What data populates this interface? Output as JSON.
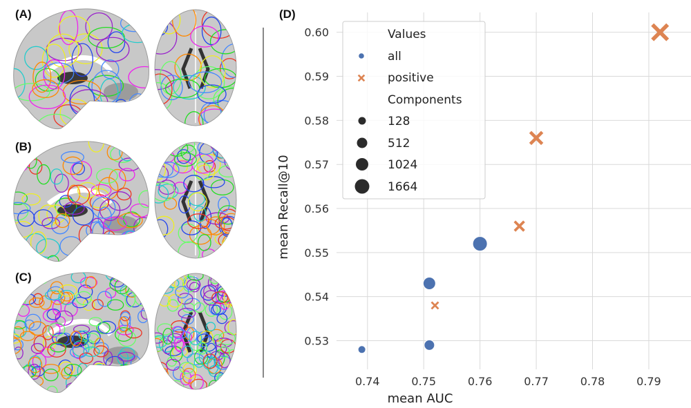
{
  "panels": {
    "a": "(A)",
    "b": "(B)",
    "c": "(C)",
    "d": "(D)"
  },
  "atlas_colors": [
    "#2244ee",
    "#9922cc",
    "#ee22ee",
    "#22dd22",
    "#22cccc",
    "#eeee22",
    "#ee3322",
    "#ff8800",
    "#66ff66",
    "#4488ff"
  ],
  "chart_data": {
    "type": "scatter",
    "title": "",
    "xlabel": "mean AUC",
    "ylabel": "mean Recall@10",
    "xlim": [
      0.7345,
      0.7975
    ],
    "ylim": [
      0.5235,
      0.6045
    ],
    "xticks": [
      0.74,
      0.75,
      0.76,
      0.77,
      0.78,
      0.79
    ],
    "yticks": [
      0.53,
      0.54,
      0.55,
      0.56,
      0.57,
      0.58,
      0.59,
      0.6
    ],
    "xtick_labels": [
      "0.74",
      "0.75",
      "0.76",
      "0.77",
      "0.78",
      "0.79"
    ],
    "ytick_labels": [
      "0.53",
      "0.54",
      "0.55",
      "0.56",
      "0.57",
      "0.58",
      "0.59",
      "0.60"
    ],
    "grid": true,
    "series": [
      {
        "name": "all",
        "marker": "circle",
        "color": "#4c72b0",
        "points": [
          {
            "x": 0.739,
            "y": 0.528,
            "components": 128
          },
          {
            "x": 0.751,
            "y": 0.529,
            "components": 512
          },
          {
            "x": 0.751,
            "y": 0.543,
            "components": 1024
          },
          {
            "x": 0.76,
            "y": 0.552,
            "components": 1664
          }
        ]
      },
      {
        "name": "positive",
        "marker": "x",
        "color": "#dd8452",
        "points": [
          {
            "x": 0.752,
            "y": 0.538,
            "components": 128
          },
          {
            "x": 0.767,
            "y": 0.556,
            "components": 512
          },
          {
            "x": 0.77,
            "y": 0.576,
            "components": 1024
          },
          {
            "x": 0.792,
            "y": 0.6,
            "components": 1664
          }
        ]
      }
    ],
    "legend": {
      "placement": "top-left",
      "hue_title": "Values",
      "size_title": "Components",
      "size_entries": [
        128,
        512,
        1024,
        1664
      ],
      "size_labels": [
        "128",
        "512",
        "1024",
        "1664"
      ],
      "size_marker_color": "#2b2b2b"
    }
  }
}
